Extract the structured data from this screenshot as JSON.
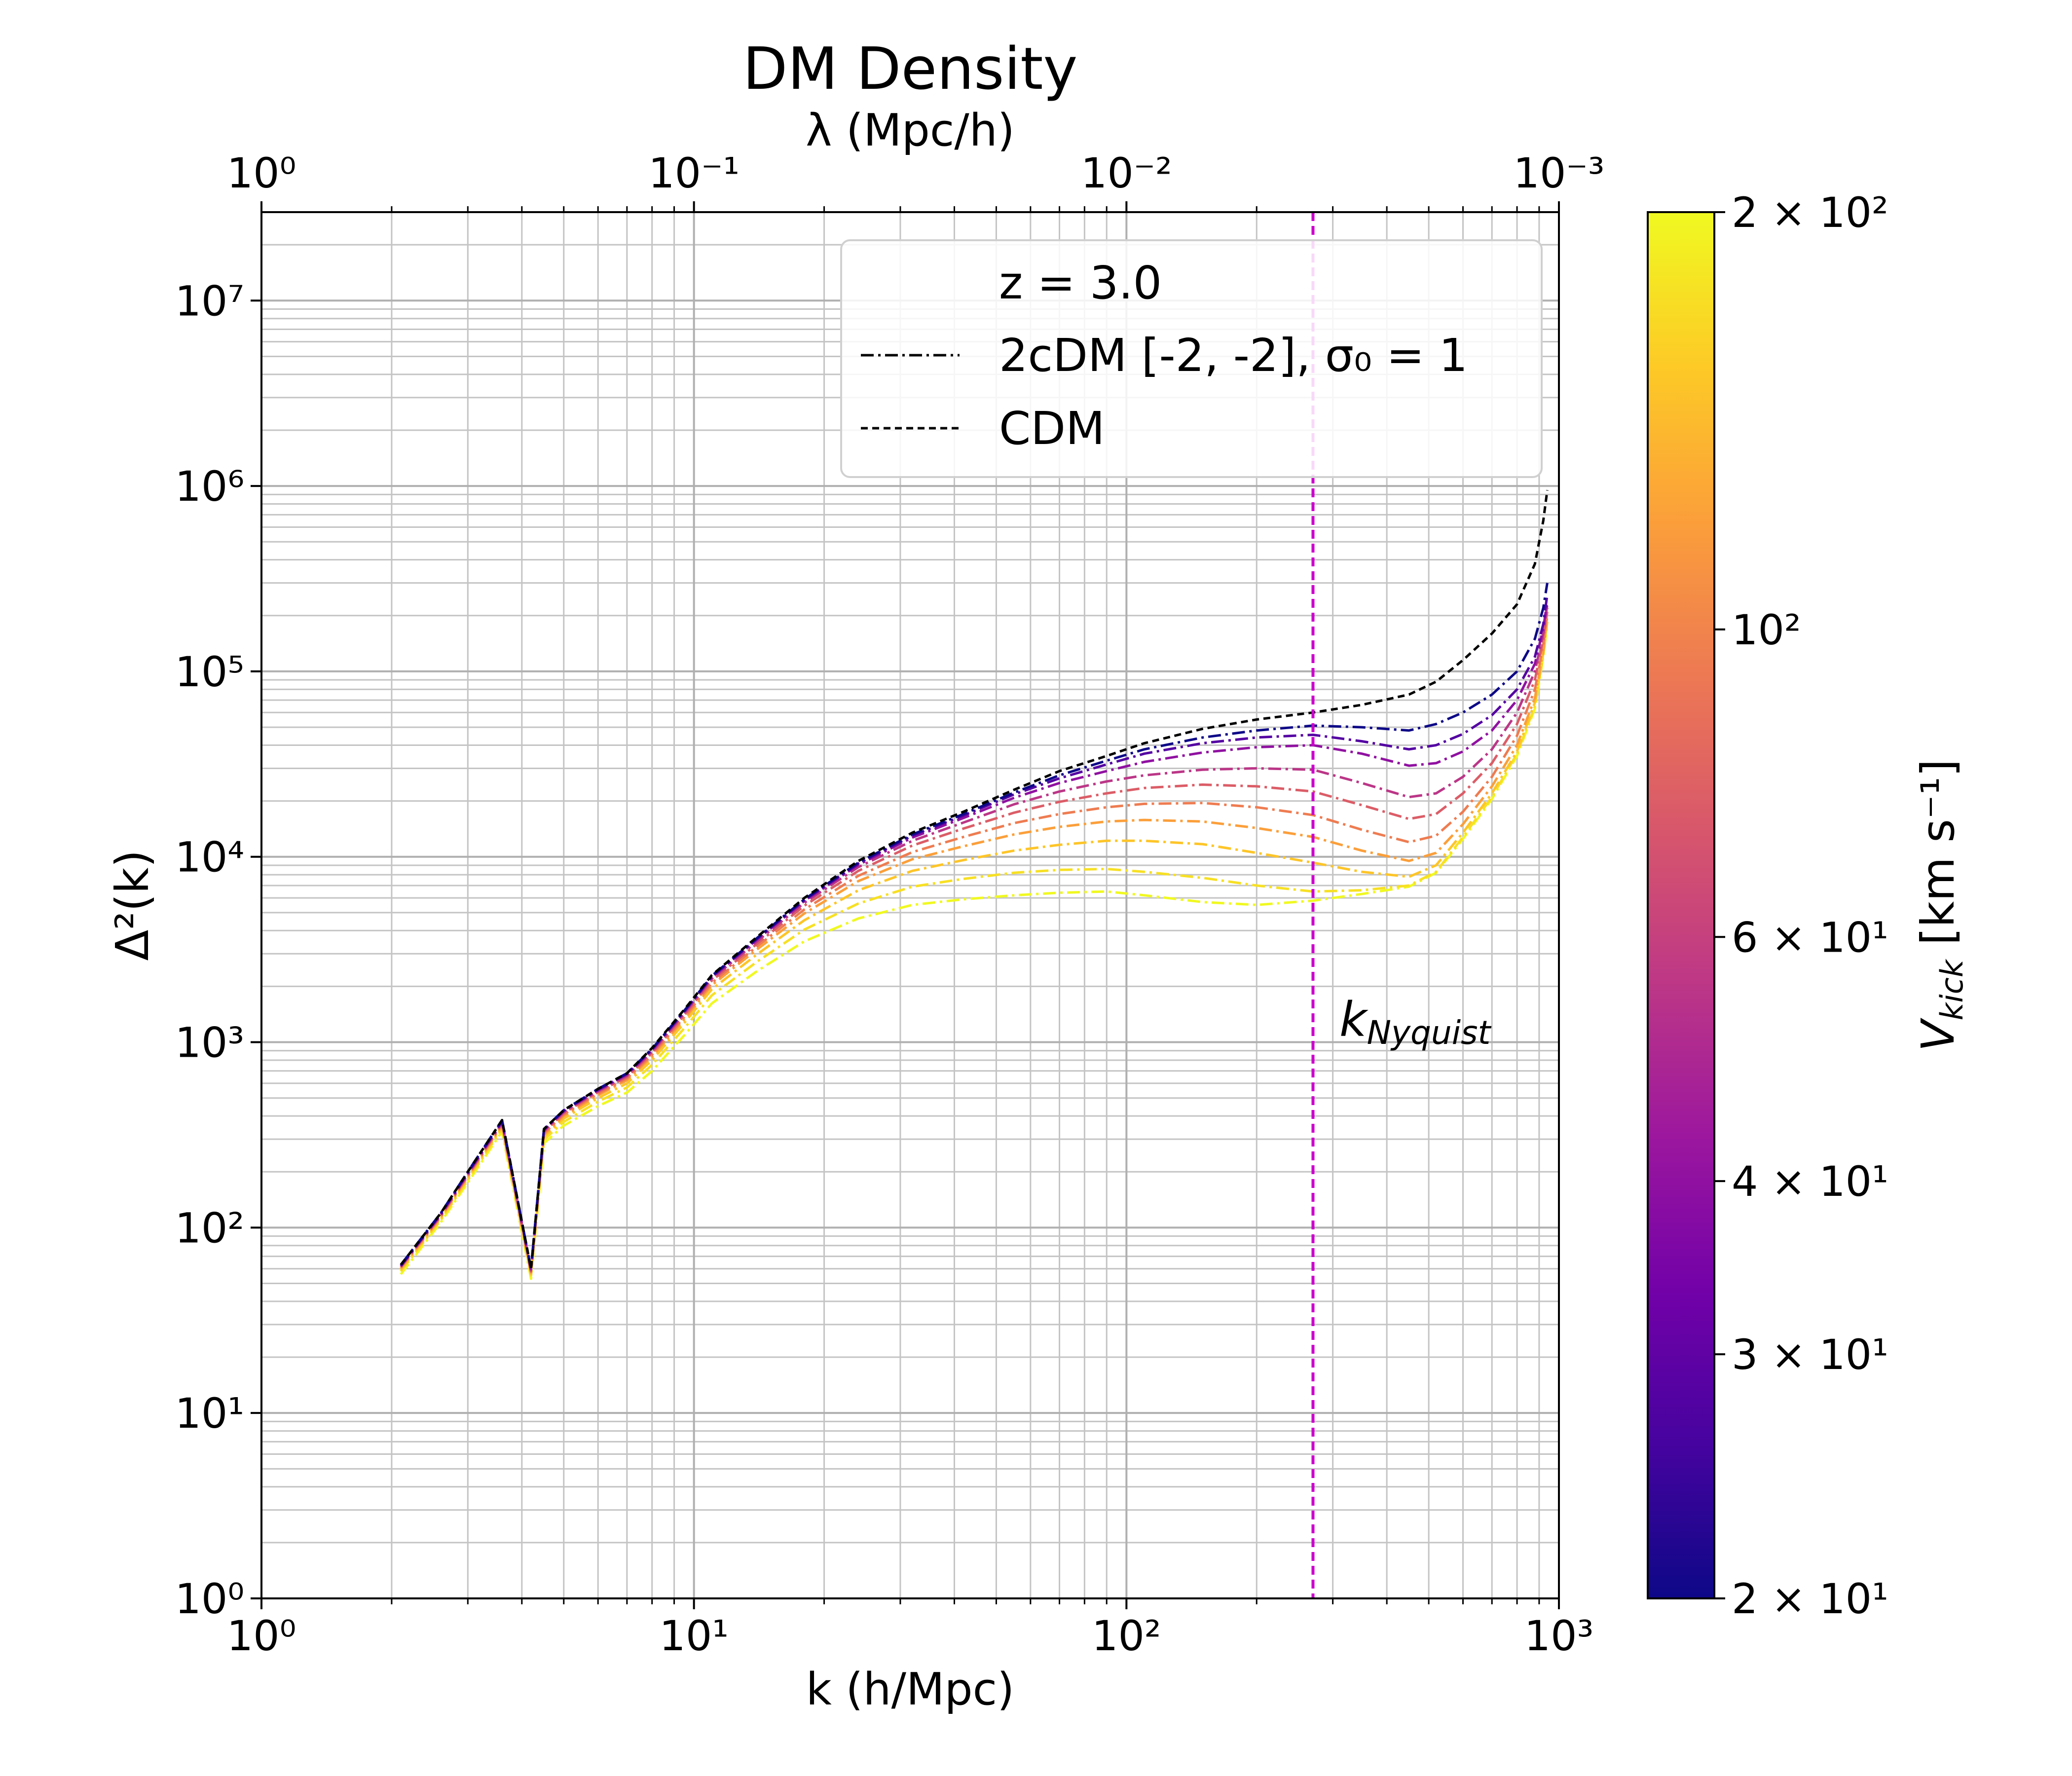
{
  "chart_data": {
    "type": "line",
    "title": "DM Density",
    "xlabel": "k (h/Mpc)",
    "ylabel": "Δ²(k)",
    "top_xlabel": "λ (Mpc/h)",
    "xscale": "log",
    "yscale": "log",
    "xlim": [
      1,
      1000
    ],
    "ylim": [
      1,
      30000000
    ],
    "x_ticks": [
      1,
      10,
      100,
      1000
    ],
    "x_tick_labels": [
      "10⁰",
      "10¹",
      "10²",
      "10³"
    ],
    "top_x_ticks": [
      1,
      0.1,
      0.01,
      0.001
    ],
    "top_x_tick_labels": [
      "10⁰",
      "10⁻¹",
      "10⁻²",
      "10⁻³"
    ],
    "y_ticks": [
      1,
      10,
      100,
      1000,
      10000,
      100000,
      1000000,
      10000000
    ],
    "y_tick_labels": [
      "10⁰",
      "10¹",
      "10²",
      "10³",
      "10⁴",
      "10⁵",
      "10⁶",
      "10⁷"
    ],
    "grid": true,
    "legend": {
      "placement": "top-right",
      "title": "z = 3.0",
      "entries": [
        {
          "label": "2cDM [-2, -2], σ₀ =  1",
          "style": "dashdot",
          "color": "#000000"
        },
        {
          "label": "CDM",
          "style": "dashed",
          "color": "#000000"
        }
      ]
    },
    "vline": {
      "x": 270,
      "color": "#cc00cc",
      "style": "dashed",
      "label": "k_Nyquist"
    },
    "vline_label_main": "k",
    "vline_label_sub": "Nyquist",
    "colorbar": {
      "label": "V_kick [km s⁻¹]",
      "label_main": "V",
      "label_sub": "kick",
      "label_units": " [km s⁻¹]",
      "colormap": "plasma",
      "scale": "log",
      "range": [
        20,
        200
      ],
      "ticks": [
        20,
        30,
        40,
        60,
        100,
        200
      ],
      "tick_labels": [
        "2 × 10¹",
        "3 × 10¹",
        "4 × 10¹",
        "6 × 10¹",
        "10²",
        "2 × 10²"
      ],
      "colors": [
        "#0d0887",
        "#46039f",
        "#7201a8",
        "#9c179e",
        "#bd3786",
        "#d8576b",
        "#ed7953",
        "#fb9f3a",
        "#fdca26",
        "#f0f921"
      ]
    },
    "x": [
      2.1,
      2.6,
      3.0,
      3.6,
      4.2,
      4.5,
      5.0,
      6.0,
      7.0,
      8.0,
      9.5,
      11,
      14,
      18,
      24,
      32,
      42,
      55,
      70,
      90,
      110,
      150,
      200,
      270,
      350,
      450,
      520,
      600,
      700,
      800,
      880,
      920,
      940
    ],
    "series": [
      {
        "name": "CDM",
        "style": "dashed",
        "color": "#000000",
        "values": [
          63,
          120,
          200,
          380,
          60,
          340,
          430,
          560,
          680,
          930,
          1500,
          2300,
          3700,
          6000,
          9500,
          13500,
          17500,
          23000,
          29000,
          35000,
          41000,
          49000,
          55000,
          60000,
          66000,
          75000,
          88000,
          115000,
          160000,
          230000,
          380000,
          650000,
          950000
        ]
      },
      {
        "name": "V_kick = 20",
        "vkick": 20,
        "style": "dashdot",
        "values": [
          63,
          120,
          200,
          380,
          60,
          340,
          430,
          560,
          680,
          920,
          1480,
          2280,
          3650,
          5900,
          9300,
          13200,
          17000,
          22200,
          27500,
          33000,
          38000,
          44000,
          48000,
          51000,
          50000,
          48000,
          52000,
          60000,
          75000,
          100000,
          150000,
          220000,
          300000
        ]
      },
      {
        "name": "V_kick = 28",
        "vkick": 28,
        "style": "dashdot",
        "values": [
          62,
          119,
          198,
          375,
          60,
          338,
          428,
          555,
          675,
          915,
          1470,
          2260,
          3620,
          5850,
          9200,
          13000,
          16700,
          21700,
          26500,
          31500,
          36000,
          41000,
          44000,
          45500,
          42000,
          38000,
          40000,
          46000,
          58000,
          80000,
          120000,
          180000,
          260000
        ]
      },
      {
        "name": "V_kick = 40",
        "vkick": 40,
        "style": "dashdot",
        "values": [
          62,
          118,
          196,
          372,
          59,
          335,
          425,
          550,
          670,
          905,
          1455,
          2240,
          3580,
          5780,
          9050,
          12700,
          16200,
          20800,
          25000,
          29000,
          32500,
          36500,
          39000,
          40000,
          36000,
          31000,
          32000,
          37000,
          48000,
          70000,
          110000,
          170000,
          240000
        ]
      },
      {
        "name": "V_kick = 55",
        "vkick": 55,
        "style": "dashdot",
        "values": [
          62,
          117,
          194,
          368,
          59,
          332,
          420,
          545,
          660,
          890,
          1430,
          2200,
          3500,
          5650,
          8800,
          12200,
          15300,
          19200,
          22500,
          25500,
          27500,
          29500,
          30000,
          29500,
          25000,
          21000,
          22000,
          27000,
          38000,
          60000,
          100000,
          160000,
          230000
        ]
      },
      {
        "name": "V_kick = 75",
        "vkick": 75,
        "style": "dashdot",
        "values": [
          61,
          116,
          192,
          364,
          58,
          328,
          415,
          538,
          650,
          875,
          1400,
          2150,
          3400,
          5450,
          8400,
          11500,
          14200,
          17300,
          19800,
          22000,
          23500,
          24500,
          24000,
          22500,
          19000,
          16000,
          17000,
          22000,
          32000,
          52000,
          90000,
          150000,
          220000
        ]
      },
      {
        "name": "V_kick = 95",
        "vkick": 95,
        "style": "dashdot",
        "values": [
          61,
          115,
          190,
          360,
          58,
          322,
          408,
          528,
          638,
          855,
          1365,
          2090,
          3290,
          5200,
          7900,
          10600,
          12800,
          15200,
          17000,
          18500,
          19300,
          19500,
          18500,
          16800,
          14000,
          12000,
          13000,
          17500,
          27000,
          45000,
          80000,
          140000,
          210000
        ]
      },
      {
        "name": "V_kick = 120",
        "vkick": 120,
        "style": "dashdot",
        "values": [
          60,
          114,
          188,
          355,
          57,
          316,
          400,
          518,
          625,
          835,
          1330,
          2030,
          3170,
          4950,
          7400,
          9700,
          11400,
          13200,
          14500,
          15500,
          15800,
          15500,
          14300,
          12800,
          10800,
          9500,
          10500,
          15000,
          24000,
          40000,
          72000,
          130000,
          200000
        ]
      },
      {
        "name": "V_kick = 150",
        "vkick": 150,
        "style": "dashdot",
        "values": [
          59,
          112,
          184,
          348,
          56,
          308,
          388,
          500,
          600,
          800,
          1270,
          1930,
          2980,
          4550,
          6600,
          8400,
          9600,
          10800,
          11600,
          12200,
          12200,
          11700,
          10500,
          9300,
          8300,
          7800,
          9000,
          13500,
          22000,
          37000,
          68000,
          125000,
          190000
        ]
      },
      {
        "name": "V_kick = 175",
        "vkick": 175,
        "style": "dashdot",
        "values": [
          58,
          110,
          180,
          340,
          55,
          298,
          372,
          478,
          570,
          755,
          1190,
          1790,
          2720,
          4050,
          5600,
          6900,
          7600,
          8200,
          8500,
          8600,
          8300,
          7700,
          7000,
          6500,
          6600,
          7000,
          8300,
          12800,
          21000,
          36000,
          65000,
          122000,
          185000
        ]
      },
      {
        "name": "V_kick = 200",
        "vkick": 200,
        "style": "dashdot",
        "values": [
          56,
          107,
          175,
          330,
          53,
          285,
          355,
          452,
          535,
          700,
          1090,
          1620,
          2420,
          3500,
          4650,
          5500,
          5900,
          6200,
          6400,
          6500,
          6200,
          5700,
          5500,
          5800,
          6300,
          6900,
          8200,
          12500,
          20500,
          35000,
          63000,
          120000,
          180000
        ]
      }
    ]
  }
}
